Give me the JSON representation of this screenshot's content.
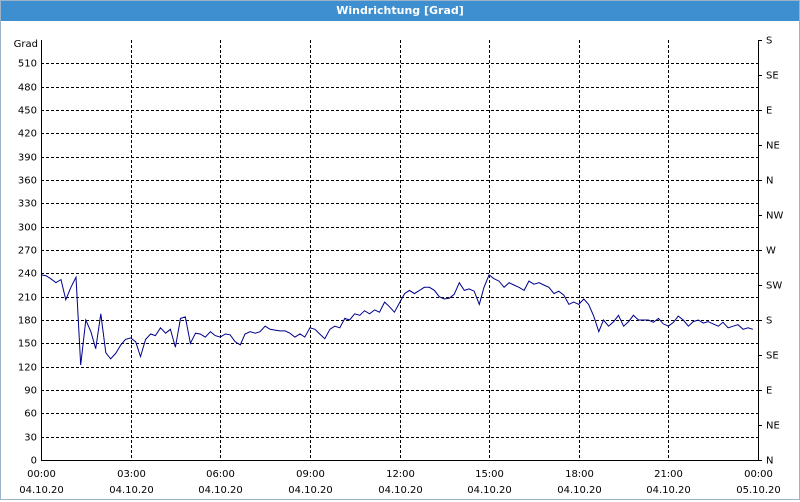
{
  "chart_data": {
    "type": "line",
    "title": "Windrichtung [Grad]",
    "y_label": "Grad",
    "xlim": [
      0,
      24
    ],
    "xticks": [
      {
        "value": 0,
        "label": "00:00",
        "date": "04.10.20"
      },
      {
        "value": 3,
        "label": "03:00",
        "date": "04.10.20"
      },
      {
        "value": 6,
        "label": "06:00",
        "date": "04.10.20"
      },
      {
        "value": 9,
        "label": "09:00",
        "date": "04.10.20"
      },
      {
        "value": 12,
        "label": "12:00",
        "date": "04.10.20"
      },
      {
        "value": 15,
        "label": "15:00",
        "date": "04.10.20"
      },
      {
        "value": 18,
        "label": "18:00",
        "date": "04.10.20"
      },
      {
        "value": 21,
        "label": "21:00",
        "date": "04.10.20"
      },
      {
        "value": 24,
        "label": "00:00",
        "date": "05.10.20"
      }
    ],
    "ylim": [
      0,
      540
    ],
    "yticks": [
      0,
      30,
      60,
      90,
      120,
      150,
      180,
      210,
      240,
      270,
      300,
      330,
      360,
      390,
      420,
      450,
      480,
      510
    ],
    "y2lim": [
      0,
      540
    ],
    "y2ticks": [
      {
        "value": 0,
        "label": "N"
      },
      {
        "value": 45,
        "label": "NE"
      },
      {
        "value": 90,
        "label": "E"
      },
      {
        "value": 135,
        "label": "SE"
      },
      {
        "value": 180,
        "label": "S"
      },
      {
        "value": 225,
        "label": "SW"
      },
      {
        "value": 270,
        "label": "W"
      },
      {
        "value": 315,
        "label": "NW"
      },
      {
        "value": 360,
        "label": "N"
      },
      {
        "value": 405,
        "label": "NE"
      },
      {
        "value": 450,
        "label": "E"
      },
      {
        "value": 495,
        "label": "SE"
      },
      {
        "value": 540,
        "label": "S"
      }
    ],
    "grid": true,
    "series": [
      {
        "color": "#00008b",
        "x": [
          0,
          0.17,
          0.33,
          0.5,
          0.67,
          0.83,
          1,
          1.17,
          1.33,
          1.5,
          1.67,
          1.83,
          2,
          2.17,
          2.33,
          2.5,
          2.67,
          2.83,
          3,
          3.17,
          3.33,
          3.5,
          3.67,
          3.83,
          4,
          4.17,
          4.33,
          4.5,
          4.67,
          4.83,
          5,
          5.17,
          5.33,
          5.5,
          5.67,
          5.83,
          6,
          6.17,
          6.33,
          6.5,
          6.67,
          6.83,
          7,
          7.17,
          7.33,
          7.5,
          7.67,
          7.83,
          8,
          8.17,
          8.33,
          8.5,
          8.67,
          8.83,
          9,
          9.17,
          9.33,
          9.5,
          9.67,
          9.83,
          10,
          10.17,
          10.33,
          10.5,
          10.67,
          10.83,
          11,
          11.17,
          11.33,
          11.5,
          11.67,
          11.83,
          12,
          12.17,
          12.33,
          12.5,
          12.67,
          12.83,
          13,
          13.17,
          13.33,
          13.5,
          13.67,
          13.83,
          14,
          14.17,
          14.33,
          14.5,
          14.67,
          14.83,
          15,
          15.17,
          15.33,
          15.5,
          15.67,
          15.83,
          16,
          16.17,
          16.33,
          16.5,
          16.67,
          16.83,
          17,
          17.17,
          17.33,
          17.5,
          17.67,
          17.83,
          18,
          18.17,
          18.33,
          18.5,
          18.67,
          18.83,
          19,
          19.17,
          19.33,
          19.5,
          19.67,
          19.83,
          20,
          20.17,
          20.33,
          20.5,
          20.67,
          20.83,
          21,
          21.17,
          21.33,
          21.5,
          21.67,
          21.83,
          22,
          22.17,
          22.33,
          22.5,
          22.67,
          22.83,
          23,
          23.17,
          23.33,
          23.5,
          23.67,
          23.83
        ],
        "values": [
          238,
          237,
          233,
          228,
          232,
          206,
          222,
          235,
          122,
          180,
          165,
          143,
          188,
          138,
          130,
          137,
          148,
          155,
          157,
          152,
          133,
          155,
          162,
          160,
          170,
          163,
          168,
          145,
          182,
          184,
          150,
          163,
          162,
          158,
          165,
          160,
          158,
          162,
          161,
          152,
          148,
          162,
          165,
          163,
          165,
          172,
          168,
          167,
          166,
          166,
          163,
          158,
          162,
          158,
          170,
          168,
          162,
          156,
          168,
          172,
          170,
          182,
          180,
          188,
          186,
          192,
          188,
          193,
          190,
          203,
          197,
          190,
          202,
          214,
          218,
          214,
          218,
          222,
          222,
          218,
          210,
          207,
          208,
          213,
          228,
          218,
          220,
          217,
          200,
          222,
          238,
          233,
          230,
          222,
          228,
          225,
          222,
          218,
          230,
          226,
          228,
          225,
          222,
          214,
          217,
          212,
          200,
          203,
          200,
          207,
          200,
          185,
          165,
          180,
          172,
          178,
          186,
          172,
          178,
          186,
          180,
          180,
          180,
          177,
          182,
          175,
          172,
          177,
          185,
          180,
          172,
          178,
          180,
          176,
          178,
          175,
          172,
          177,
          170,
          172,
          174,
          168,
          170,
          168
        ]
      }
    ]
  }
}
